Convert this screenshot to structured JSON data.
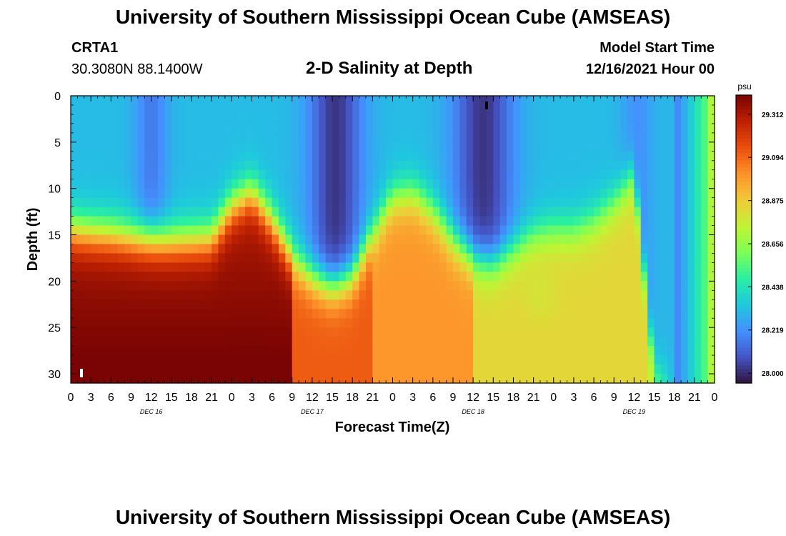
{
  "header": {
    "title": "University of Southern Mississippi Ocean Cube (AMSEAS)",
    "station_id": "CRTA1",
    "station_coords": "30.3080N  88.1400W",
    "plot_title": "2-D Salinity at Depth",
    "model_start_label": "Model Start Time",
    "model_start_value": "12/16/2021 Hour 00"
  },
  "footer": {
    "title": "University of Southern Mississippi Ocean Cube (AMSEAS)"
  },
  "colors": {
    "scale": [
      "#30123b",
      "#4454c4",
      "#4490fe",
      "#1fc8de",
      "#29efa2",
      "#7dff56",
      "#c1f334",
      "#f1ca3a",
      "#fe922a",
      "#ea4f0d",
      "#be2102",
      "#7a0403"
    ]
  },
  "chart_data": {
    "type": "heatmap",
    "title": "2-D Salinity at Depth",
    "xlabel": "Forecast Time(Z)",
    "ylabel": "Depth (ft)",
    "x_hours_range": [
      0,
      96
    ],
    "ylim": [
      0,
      31
    ],
    "x_tick_step_hours": 3,
    "x_tick_labels": [
      "0",
      "3",
      "6",
      "9",
      "12",
      "15",
      "18",
      "21",
      "0",
      "3",
      "6",
      "9",
      "12",
      "15",
      "18",
      "21",
      "0",
      "3",
      "6",
      "9",
      "12",
      "15",
      "18",
      "21",
      "0",
      "3",
      "6",
      "9",
      "12",
      "15",
      "18",
      "21",
      "0"
    ],
    "y_ticks": [
      0,
      5,
      10,
      15,
      20,
      25,
      30
    ],
    "day_labels": [
      {
        "hour": 12,
        "label": "DEC 16"
      },
      {
        "hour": 36,
        "label": "DEC 17"
      },
      {
        "hour": 60,
        "label": "DEC 18"
      },
      {
        "hour": 84,
        "label": "DEC 19"
      }
    ],
    "colorbar": {
      "unit": "psu",
      "min": 27.95,
      "max": 29.41,
      "tick_values": [
        28.0,
        28.219,
        28.438,
        28.656,
        28.875,
        29.094,
        29.312
      ],
      "tick_labels": [
        "28.000",
        "28.219",
        "28.438",
        "28.656",
        "28.875",
        "29.094",
        "29.312"
      ]
    },
    "surface_min_features_hours": [
      12,
      39,
      61,
      84
    ],
    "interface_depth_ft_by_hour": {
      "hours": [
        0,
        3,
        6,
        9,
        12,
        15,
        18,
        21,
        24,
        27,
        30,
        33,
        36,
        39,
        42,
        45,
        48,
        51,
        54,
        57,
        60,
        63,
        66,
        69,
        72,
        75,
        78,
        81,
        84,
        87,
        90,
        96
      ],
      "depth": [
        14.5,
        14.8,
        15.0,
        15.3,
        15.5,
        15.7,
        15.6,
        15.4,
        12.0,
        10.5,
        13.5,
        17.5,
        19.5,
        20.5,
        19.5,
        15.0,
        11.0,
        10.5,
        12.5,
        15.5,
        17.5,
        18.0,
        16.5,
        15.0,
        14.5,
        14.5,
        13.5,
        11.5,
        8.5,
        30.0,
        30.0,
        30.0
      ]
    }
  }
}
